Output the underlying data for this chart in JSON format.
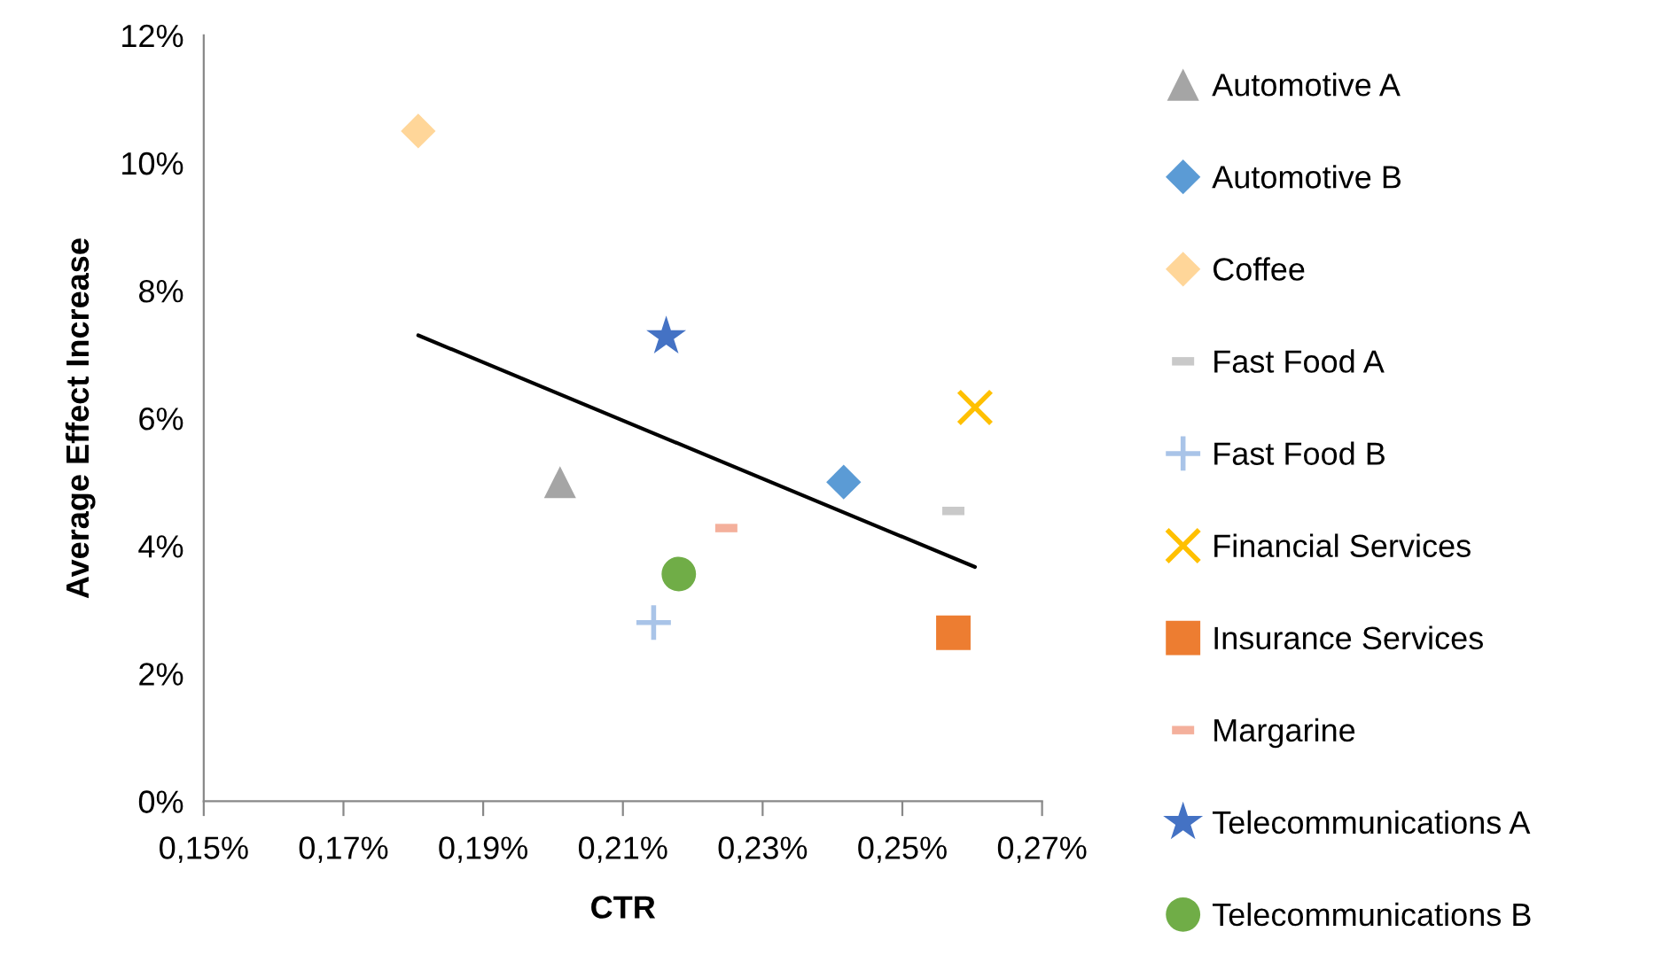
{
  "chart_data": {
    "type": "scatter",
    "xlabel": "CTR",
    "ylabel": "Average Effect Increase",
    "xlim": [
      0.15,
      0.27
    ],
    "ylim": [
      0,
      12
    ],
    "xticks": [
      {
        "value": 0.15,
        "label": "0,15%"
      },
      {
        "value": 0.17,
        "label": "0,17%"
      },
      {
        "value": 0.19,
        "label": "0,19%"
      },
      {
        "value": 0.21,
        "label": "0,21%"
      },
      {
        "value": 0.23,
        "label": "0,23%"
      },
      {
        "value": 0.25,
        "label": "0,25%"
      },
      {
        "value": 0.27,
        "label": "0,27%"
      }
    ],
    "yticks": [
      {
        "value": 0,
        "label": "0%"
      },
      {
        "value": 2,
        "label": "2%"
      },
      {
        "value": 4,
        "label": "4%"
      },
      {
        "value": 6,
        "label": "6%"
      },
      {
        "value": 8,
        "label": "8%"
      },
      {
        "value": 10,
        "label": "10%"
      },
      {
        "value": 12,
        "label": "12%"
      }
    ],
    "grid": false,
    "legend": "right",
    "series": [
      {
        "name": "Automotive A",
        "color": "#a5a5a5",
        "marker": "triangle",
        "x": [
          0.201
        ],
        "values": [
          5.0
        ]
      },
      {
        "name": "Automotive B",
        "color": "#5b9bd5",
        "marker": "diamond",
        "x": [
          0.2416
        ],
        "values": [
          5.0
        ]
      },
      {
        "name": "Coffee",
        "color": "#ffd699",
        "marker": "diamond",
        "x": [
          0.1807
        ],
        "values": [
          10.5
        ]
      },
      {
        "name": "Fast Food A",
        "color": "#c9c9c9",
        "x": [
          0.2573
        ],
        "values": [
          4.55
        ]
      },
      {
        "name": "Fast Food B",
        "color": "#a9c4e8",
        "marker": "plus",
        "x": [
          0.2144
        ],
        "values": [
          2.8
        ]
      },
      {
        "name": "Financial Services",
        "color": "#ffc000",
        "marker": "cross",
        "x": [
          0.2604
        ],
        "values": [
          6.17
        ]
      },
      {
        "name": "Insurance Services",
        "color": "#ed7d31",
        "marker": "square",
        "x": [
          0.2573
        ],
        "values": [
          2.64
        ]
      },
      {
        "name": "Margarine",
        "color": "#f4b09c",
        "x": [
          0.2248
        ],
        "values": [
          4.28
        ]
      },
      {
        "name": "Telecommunications A",
        "color": "#4472c4",
        "marker": "star",
        "x": [
          0.2162
        ],
        "values": [
          7.28
        ]
      },
      {
        "name": "Telecommunications B",
        "color": "#70ad47",
        "marker": "circle",
        "x": [
          0.218
        ],
        "values": [
          3.56
        ]
      },
      {
        "type": "line",
        "color": "#000000",
        "marker": "none",
        "x": [
          0.1807,
          0.2604
        ],
        "values": [
          7.3,
          3.67
        ]
      }
    ]
  }
}
